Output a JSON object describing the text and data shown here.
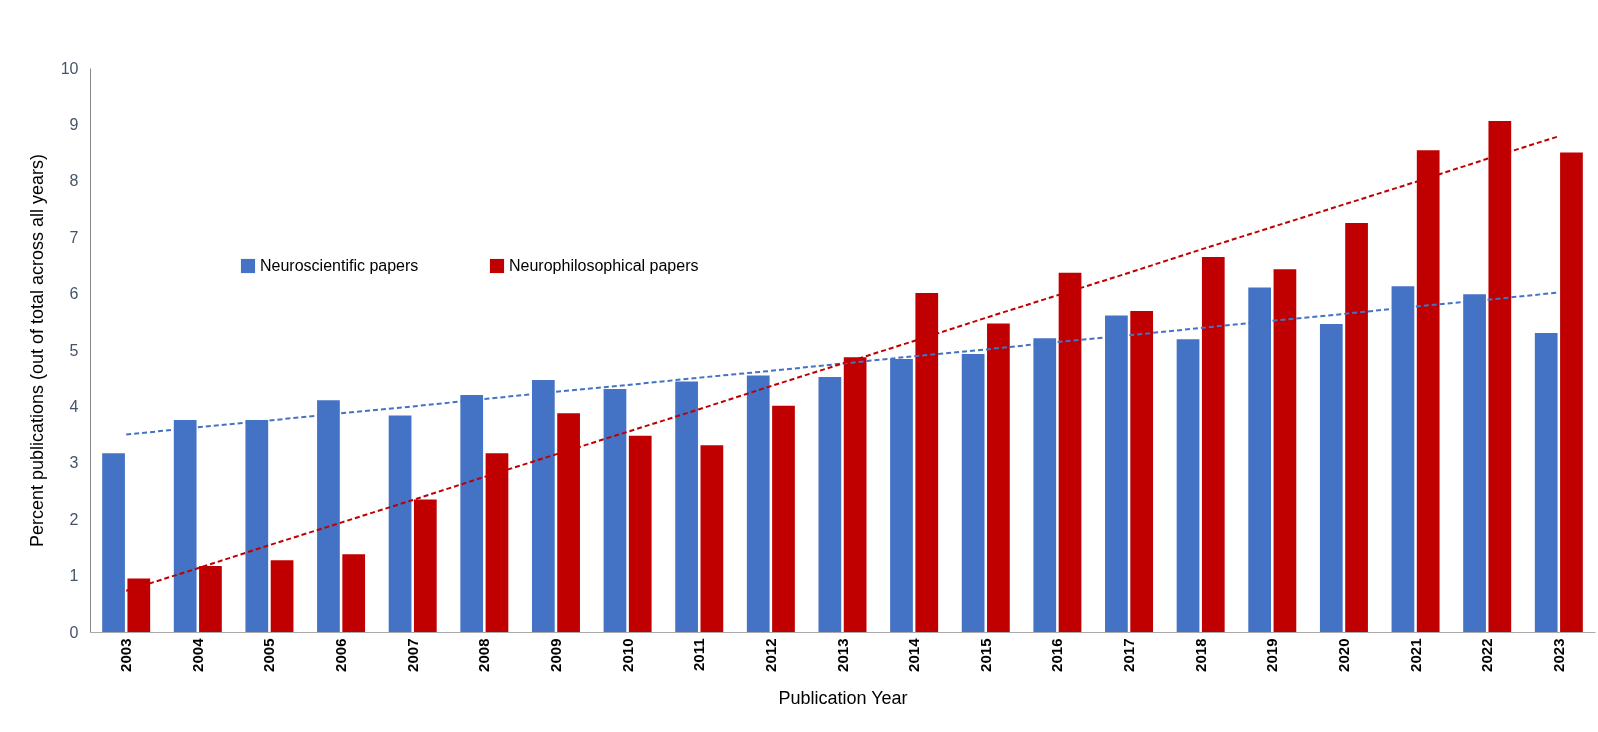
{
  "chart_data": {
    "type": "bar",
    "xlabel": "Publication Year",
    "ylabel": "Percent publications (out of total across all years)",
    "categories": [
      "2003",
      "2004",
      "2005",
      "2006",
      "2007",
      "2008",
      "2009",
      "2010",
      "2011",
      "2012",
      "2013",
      "2014",
      "2015",
      "2016",
      "2017",
      "2018",
      "2019",
      "2020",
      "2021",
      "2022",
      "2023"
    ],
    "series": [
      {
        "name": "Neuroscientific papers",
        "color": "#4472c4",
        "values": [
          3.17,
          3.76,
          3.76,
          4.11,
          3.84,
          4.2,
          4.47,
          4.31,
          4.44,
          4.55,
          4.52,
          4.84,
          4.93,
          5.21,
          5.61,
          5.19,
          6.11,
          5.46,
          6.13,
          5.99,
          5.3
        ]
      },
      {
        "name": "Neurophilosophical papers",
        "color": "#c00000",
        "values": [
          0.95,
          1.17,
          1.27,
          1.38,
          2.35,
          3.17,
          3.88,
          3.48,
          3.31,
          4.01,
          4.87,
          6.01,
          5.47,
          6.37,
          5.69,
          6.65,
          6.43,
          7.25,
          8.54,
          9.06,
          8.5
        ]
      },
      {
        "type": "line",
        "color": "#4472c4",
        "values": [
          3.5,
          3.63,
          3.75,
          3.88,
          4.0,
          4.13,
          4.26,
          4.38,
          4.51,
          4.63,
          4.76,
          4.89,
          5.01,
          5.14,
          5.26,
          5.39,
          5.52,
          5.64,
          5.77,
          5.89,
          6.02
        ]
      },
      {
        "type": "line",
        "color": "#c00000",
        "values": [
          0.73,
          1.13,
          1.54,
          1.94,
          2.34,
          2.75,
          3.15,
          3.55,
          3.95,
          4.36,
          4.76,
          5.16,
          5.57,
          5.97,
          6.37,
          6.78,
          7.18,
          7.58,
          7.98,
          8.39,
          8.79
        ]
      }
    ],
    "ylim": [
      0,
      10
    ],
    "yticks": [
      0,
      1,
      2,
      3,
      4,
      5,
      6,
      7,
      8,
      9,
      10
    ],
    "grid": false,
    "legend": "left",
    "line_style": "dashed"
  }
}
